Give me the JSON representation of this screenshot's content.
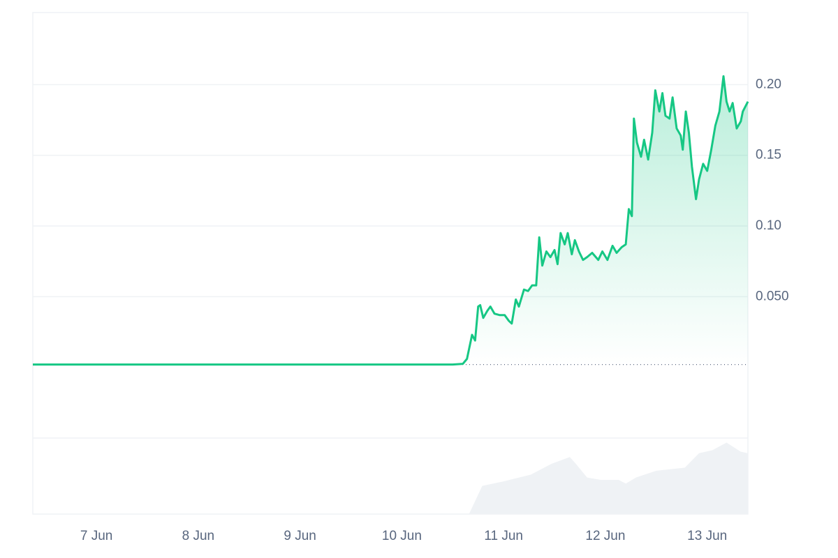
{
  "chart_data": {
    "type": "line",
    "series": [
      {
        "name": "price",
        "color": "#16c784",
        "x": [
          6.375,
          7.5,
          8.5,
          9.5,
          10.5,
          10.6,
          10.64,
          10.69,
          10.72,
          10.75,
          10.77,
          10.8,
          10.84,
          10.87,
          10.91,
          10.96,
          11.01,
          11.05,
          11.08,
          11.12,
          11.15,
          11.2,
          11.24,
          11.28,
          11.32,
          11.35,
          11.38,
          11.42,
          11.46,
          11.5,
          11.53,
          11.56,
          11.6,
          11.63,
          11.67,
          11.7,
          11.74,
          11.78,
          11.82,
          11.87,
          11.93,
          11.97,
          12.02,
          12.07,
          12.11,
          12.16,
          12.2,
          12.23,
          12.26,
          12.28,
          12.31,
          12.35,
          12.38,
          12.42,
          12.46,
          12.49,
          12.53,
          12.56,
          12.59,
          12.63,
          12.66,
          12.7,
          12.74,
          12.76,
          12.79,
          12.82,
          12.85,
          12.89,
          12.92,
          12.96,
          13.0,
          13.04,
          13.08,
          13.12,
          13.16,
          13.19,
          13.22,
          13.25,
          13.29,
          13.33,
          13.35,
          13.4
        ],
        "values": [
          0.002,
          0.002,
          0.002,
          0.002,
          0.002,
          0.0025,
          0.006,
          0.023,
          0.019,
          0.043,
          0.044,
          0.035,
          0.04,
          0.043,
          0.038,
          0.037,
          0.037,
          0.033,
          0.031,
          0.048,
          0.043,
          0.055,
          0.054,
          0.058,
          0.058,
          0.092,
          0.072,
          0.082,
          0.078,
          0.083,
          0.073,
          0.095,
          0.087,
          0.095,
          0.08,
          0.09,
          0.082,
          0.076,
          0.078,
          0.081,
          0.076,
          0.082,
          0.076,
          0.086,
          0.081,
          0.085,
          0.087,
          0.112,
          0.107,
          0.176,
          0.159,
          0.149,
          0.161,
          0.147,
          0.166,
          0.196,
          0.181,
          0.194,
          0.178,
          0.176,
          0.191,
          0.169,
          0.164,
          0.154,
          0.181,
          0.166,
          0.142,
          0.119,
          0.133,
          0.144,
          0.139,
          0.154,
          0.171,
          0.181,
          0.206,
          0.188,
          0.181,
          0.187,
          0.169,
          0.174,
          0.181,
          0.188
        ]
      }
    ],
    "volume": {
      "color": "#eff2f5",
      "x": [
        6.375,
        10.6,
        10.66,
        10.72,
        10.79,
        11.0,
        11.27,
        11.47,
        11.65,
        11.71,
        11.82,
        11.955,
        12.13,
        12.2,
        12.3,
        12.5,
        12.78,
        12.92,
        13.05,
        13.19,
        13.33,
        13.4
      ],
      "values": [
        0,
        0,
        0,
        17,
        37,
        43,
        52,
        66,
        75,
        66,
        48,
        45,
        45,
        40,
        48,
        57,
        61,
        80,
        84,
        94,
        82,
        80
      ],
      "ylim": [
        0,
        100
      ]
    },
    "xlim": [
      6.375,
      13.4
    ],
    "xticks": [
      {
        "value": 7,
        "label": "7 Jun"
      },
      {
        "value": 8,
        "label": "8 Jun"
      },
      {
        "value": 9,
        "label": "9 Jun"
      },
      {
        "value": 10,
        "label": "10 Jun"
      },
      {
        "value": 11,
        "label": "11 Jun"
      },
      {
        "value": 12,
        "label": "12 Jun"
      },
      {
        "value": 13,
        "label": "13 Jun"
      }
    ],
    "ylim": [
      -0.05,
      0.251
    ],
    "yticks": [
      {
        "value": 0.2,
        "label": "0.20"
      },
      0.15,
      {
        "value": 0.1,
        "label": "0.10"
      },
      {
        "value": 0.05,
        "label": "0.050"
      }
    ],
    "grid": true
  }
}
